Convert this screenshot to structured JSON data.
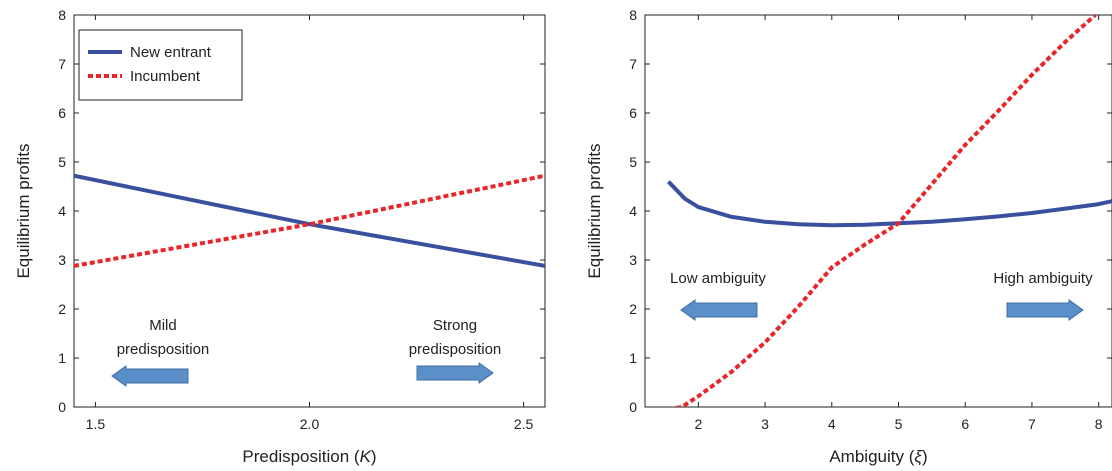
{
  "chart_data": [
    {
      "type": "line",
      "xlabel": "Predisposition (",
      "xlabel_symbol": "K",
      "xlabel_close": ")",
      "ylabel": "Equilibrium profits",
      "xlim": [
        1.45,
        2.55
      ],
      "ylim": [
        0,
        8
      ],
      "xticks": [
        1.5,
        2.0,
        2.5
      ],
      "xtick_labels": [
        "1.5",
        "2.0",
        "2.5"
      ],
      "yticks": [
        0,
        1,
        2,
        3,
        4,
        5,
        6,
        7,
        8
      ],
      "ytick_labels": [
        "0",
        "1",
        "2",
        "3",
        "4",
        "5",
        "6",
        "7",
        "8"
      ],
      "legend_position": "top-left",
      "series": [
        {
          "name": "New entrant",
          "style": "solid",
          "color": "#3a4f9e",
          "x": [
            1.45,
            2.0,
            2.55
          ],
          "y": [
            4.72,
            3.73,
            2.88
          ]
        },
        {
          "name": "Incumbent",
          "style": "dotted",
          "color": "#e8262a",
          "x": [
            1.45,
            2.0,
            2.55
          ],
          "y": [
            2.88,
            3.73,
            4.72
          ]
        }
      ],
      "annotations": [
        {
          "lines": [
            "Mild",
            "predisposition"
          ],
          "arrow": "left"
        },
        {
          "lines": [
            "Strong",
            "predisposition"
          ],
          "arrow": "right"
        }
      ]
    },
    {
      "type": "line",
      "xlabel": "Ambiguity (",
      "xlabel_symbol": "ξ",
      "xlabel_close": ")",
      "ylabel": "Equilibrium profits",
      "xlim": [
        1.2,
        8.2
      ],
      "ylim": [
        0,
        8
      ],
      "xticks": [
        2,
        3,
        4,
        5,
        6,
        7,
        8
      ],
      "xtick_labels": [
        "2",
        "3",
        "4",
        "5",
        "6",
        "7",
        "8"
      ],
      "yticks": [
        0,
        1,
        2,
        3,
        4,
        5,
        6,
        7,
        8
      ],
      "ytick_labels": [
        "0",
        "1",
        "2",
        "3",
        "4",
        "5",
        "6",
        "7",
        "8"
      ],
      "series": [
        {
          "style": "solid",
          "color": "#3a4f9e",
          "x": [
            1.55,
            1.8,
            2.0,
            2.5,
            3.0,
            3.5,
            4.0,
            4.5,
            5.0,
            5.5,
            6.0,
            6.5,
            7.0,
            7.5,
            8.0,
            8.2
          ],
          "y": [
            4.6,
            4.25,
            4.08,
            3.88,
            3.78,
            3.73,
            3.71,
            3.72,
            3.75,
            3.78,
            3.83,
            3.89,
            3.96,
            4.05,
            4.14,
            4.2
          ]
        },
        {
          "style": "dotted",
          "color": "#e8262a",
          "x": [
            1.55,
            1.75,
            2.0,
            2.5,
            3.0,
            3.5,
            4.0,
            4.5,
            5.0,
            5.5,
            6.0,
            6.5,
            7.0,
            7.5,
            7.95
          ],
          "y": [
            -0.05,
            0.0,
            0.22,
            0.72,
            1.32,
            2.05,
            2.85,
            3.32,
            3.75,
            4.55,
            5.35,
            6.05,
            6.78,
            7.45,
            8.0
          ]
        }
      ],
      "annotations": [
        {
          "lines": [
            "Low ambiguity"
          ],
          "arrow": "left"
        },
        {
          "lines": [
            "High ambiguity"
          ],
          "arrow": "right"
        }
      ]
    }
  ]
}
